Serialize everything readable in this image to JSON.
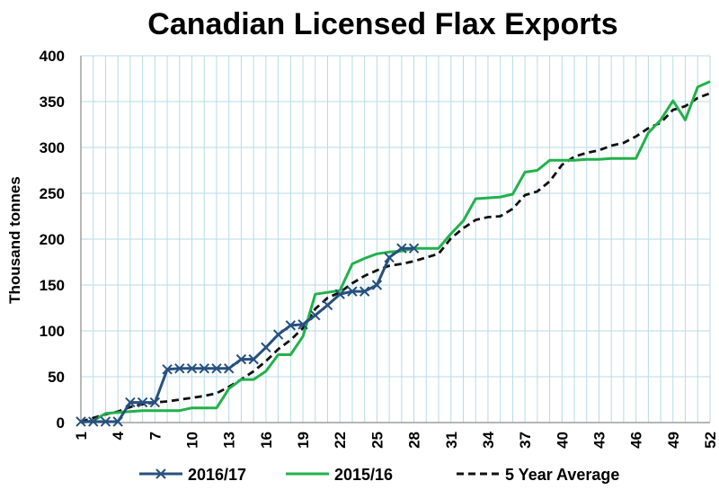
{
  "chart_data": {
    "type": "line",
    "title": "Canadian Licensed Flax Exports",
    "ylabel": "Thousand tonnes",
    "xlabel": "",
    "xlim": [
      1,
      52
    ],
    "ylim": [
      0,
      400
    ],
    "yticks": [
      "0",
      "50",
      "100",
      "150",
      "200",
      "250",
      "300",
      "350",
      "400"
    ],
    "xticks": [
      "1",
      "4",
      "7",
      "10",
      "13",
      "16",
      "19",
      "22",
      "25",
      "28",
      "31",
      "34",
      "37",
      "40",
      "43",
      "46",
      "49",
      "52"
    ],
    "grid": true,
    "legend": "bottom",
    "series": [
      {
        "name": "2016/17",
        "color": "#27507e",
        "style": "solid-x-markers",
        "x": [
          1,
          2,
          3,
          4,
          5,
          6,
          7,
          8,
          9,
          10,
          11,
          12,
          13,
          14,
          15,
          16,
          17,
          18,
          19,
          20,
          21,
          22,
          23,
          24,
          25,
          26,
          27,
          28
        ],
        "y": [
          1,
          1,
          1,
          1,
          22,
          22,
          22,
          58,
          59,
          59,
          59,
          59,
          59,
          69,
          69,
          82,
          96,
          106,
          107,
          117,
          128,
          140,
          143,
          143,
          150,
          180,
          190,
          190
        ]
      },
      {
        "name": "2015/16",
        "color": "#22b14c",
        "style": "solid",
        "x": [
          1,
          2,
          3,
          4,
          5,
          6,
          7,
          8,
          9,
          10,
          11,
          12,
          13,
          14,
          15,
          16,
          17,
          18,
          19,
          20,
          21,
          22,
          23,
          24,
          25,
          26,
          27,
          28,
          29,
          30,
          31,
          32,
          33,
          34,
          35,
          36,
          37,
          38,
          39,
          40,
          41,
          42,
          43,
          44,
          45,
          46,
          47,
          48,
          49,
          50,
          51,
          52
        ],
        "y": [
          0,
          2,
          10,
          11,
          12,
          13,
          13,
          13,
          13,
          16,
          16,
          16,
          37,
          47,
          47,
          56,
          74,
          74,
          94,
          140,
          142,
          144,
          173,
          179,
          184,
          186,
          187,
          190,
          190,
          190,
          206,
          220,
          244,
          245,
          246,
          249,
          273,
          275,
          286,
          286,
          286,
          287,
          287,
          288,
          288,
          288,
          316,
          330,
          351,
          330,
          366,
          372
        ]
      },
      {
        "name": "5 Year Average",
        "color": "#111111",
        "style": "dashed",
        "x": [
          1,
          2,
          3,
          4,
          5,
          6,
          7,
          8,
          9,
          10,
          11,
          12,
          13,
          14,
          15,
          16,
          17,
          18,
          19,
          20,
          21,
          22,
          23,
          24,
          25,
          26,
          27,
          28,
          29,
          30,
          31,
          32,
          33,
          34,
          35,
          36,
          37,
          38,
          39,
          40,
          41,
          42,
          43,
          44,
          45,
          46,
          47,
          48,
          49,
          50,
          51,
          52
        ],
        "y": [
          1,
          5,
          9,
          12,
          17,
          20,
          22,
          23,
          25,
          27,
          29,
          32,
          39,
          47,
          56,
          67,
          80,
          90,
          103,
          124,
          136,
          142,
          152,
          160,
          166,
          171,
          173,
          176,
          180,
          184,
          201,
          212,
          221,
          224,
          225,
          233,
          248,
          252,
          263,
          281,
          290,
          294,
          297,
          302,
          305,
          312,
          321,
          327,
          341,
          345,
          354,
          359
        ]
      }
    ]
  }
}
